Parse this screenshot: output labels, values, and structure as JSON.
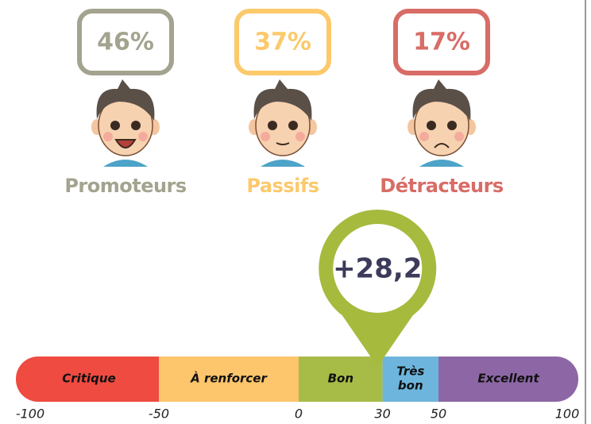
{
  "groups": [
    {
      "value": 46,
      "label": "46%",
      "name": "Promoteurs",
      "color": "#a3a38f"
    },
    {
      "value": 37,
      "label": "37%",
      "name": "Passifs",
      "color": "#fcc96b"
    },
    {
      "value": 17,
      "label": "17%",
      "name": "Détracteurs",
      "color": "#d86c66"
    }
  ],
  "score": {
    "value": 28.2,
    "label": "+28,2",
    "color": "#a6ba3e"
  },
  "scale": {
    "xlim": [
      -100,
      100
    ],
    "xticks": [
      -100,
      -50,
      0,
      30,
      50,
      100
    ],
    "segments": [
      {
        "label": "Critique",
        "color": "#ef4b41"
      },
      {
        "label": "À renforcer",
        "color": "#fdc56c"
      },
      {
        "label": "Bon",
        "color": "#a7bc47"
      },
      {
        "label": [
          "Très",
          "bon"
        ],
        "color": "#6db5dc"
      },
      {
        "label": "Excellent",
        "color": "#8d67a5"
      }
    ]
  }
}
